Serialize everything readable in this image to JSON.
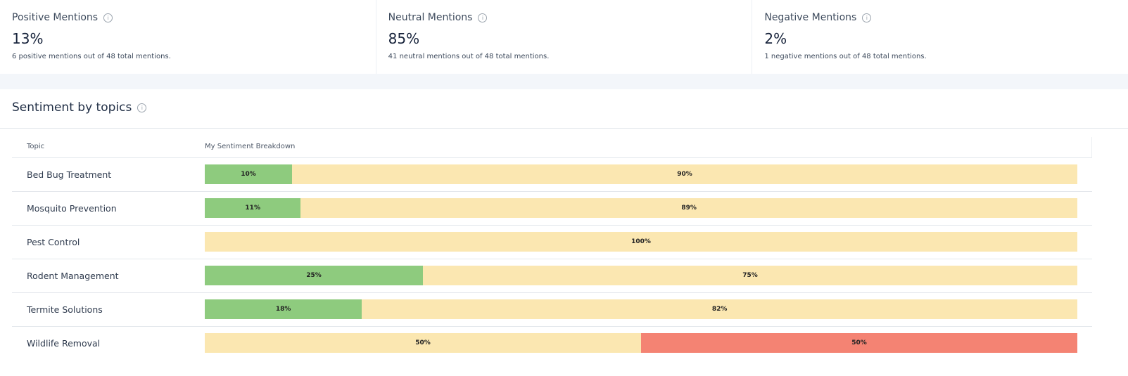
{
  "cards": [
    {
      "title": "Positive Mentions",
      "value": "13%",
      "description": "6 positive mentions out of 48 total mentions."
    },
    {
      "title": "Neutral Mentions",
      "value": "85%",
      "description": "41 neutral mentions out of 48 total mentions."
    },
    {
      "title": "Negative Mentions",
      "value": "2%",
      "description": "1 negative mentions out of 48 total mentions."
    }
  ],
  "section": {
    "title": "Sentiment by topics"
  },
  "table": {
    "columns": [
      "Topic",
      "My Sentiment Breakdown"
    ],
    "rows": [
      {
        "topic": "Bed Bug Treatment",
        "segments": [
          {
            "value": 10,
            "label": "10%",
            "color": "#8ecb7e"
          },
          {
            "value": 90,
            "label": "90%",
            "color": "#fbe7b1"
          }
        ]
      },
      {
        "topic": "Mosquito Prevention",
        "segments": [
          {
            "value": 11,
            "label": "11%",
            "color": "#8ecb7e"
          },
          {
            "value": 89,
            "label": "89%",
            "color": "#fbe7b1"
          }
        ]
      },
      {
        "topic": "Pest Control",
        "segments": [
          {
            "value": 100,
            "label": "100%",
            "color": "#fbe7b1"
          }
        ]
      },
      {
        "topic": "Rodent Management",
        "segments": [
          {
            "value": 25,
            "label": "25%",
            "color": "#8ecb7e"
          },
          {
            "value": 75,
            "label": "75%",
            "color": "#fbe7b1"
          }
        ]
      },
      {
        "topic": "Termite Solutions",
        "segments": [
          {
            "value": 18,
            "label": "18%",
            "color": "#8ecb7e"
          },
          {
            "value": 82,
            "label": "82%",
            "color": "#fbe7b1"
          }
        ]
      },
      {
        "topic": "Wildlife Removal",
        "segments": [
          {
            "value": 50,
            "label": "50%",
            "color": "#fbe7b1"
          },
          {
            "value": 50,
            "label": "50%",
            "color": "#f48373"
          }
        ]
      }
    ]
  }
}
